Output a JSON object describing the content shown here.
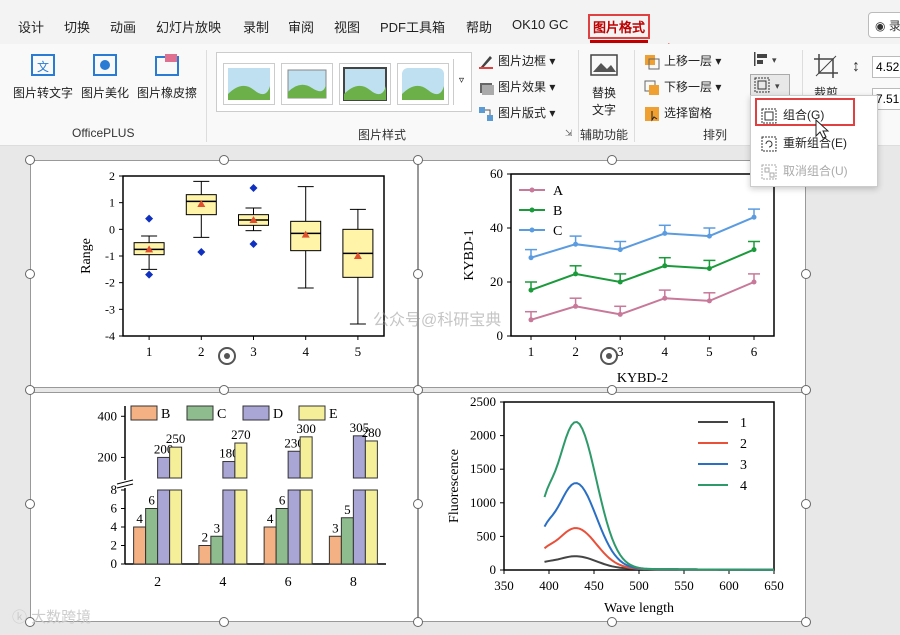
{
  "menubar": {
    "items": [
      "设计",
      "切换",
      "动画",
      "幻灯片放映",
      "录制",
      "审阅",
      "视图",
      "PDF工具箱",
      "帮助",
      "OK10 GC"
    ],
    "active": "图片格式",
    "record_label": "录"
  },
  "ribbon": {
    "officeplus": {
      "buttons": [
        "图片转文字",
        "图片美化",
        "图片橡皮擦"
      ],
      "label": "OfficePLUS"
    },
    "picture_styles": {
      "label": "图片样式",
      "items": [
        "图片边框",
        "图片效果",
        "图片版式"
      ]
    },
    "accessibility": {
      "button": "替换\n文字",
      "button_line1": "替换",
      "button_line2": "文字",
      "label": "辅助功能"
    },
    "arrange": {
      "label": "排列",
      "items": [
        "上移一层",
        "下移一层",
        "选择窗格"
      ]
    },
    "crop": {
      "label": "裁剪"
    },
    "size": {
      "height": "4.52",
      "width": "7.51"
    }
  },
  "dropdown": {
    "items": [
      {
        "label": "组合(G)",
        "enabled": true
      },
      {
        "label": "重新组合(E)",
        "enabled": true
      },
      {
        "label": "取消组合(U)",
        "enabled": false
      }
    ]
  },
  "watermarks": {
    "center": "公众号@科研宝典",
    "corner": "大数跨境"
  },
  "chart_data": [
    {
      "type": "box",
      "ylabel": "Range",
      "categories": [
        "1",
        "2",
        "3",
        "4",
        "5"
      ],
      "ylim": [
        -4,
        2
      ],
      "yticks": [
        "-4",
        "-3",
        "-2",
        "-1",
        "0",
        "1",
        "2"
      ],
      "boxes": [
        {
          "min": -1.5,
          "q1": -0.95,
          "median": -0.75,
          "q3": -0.5,
          "max": -0.25,
          "mean": -0.75,
          "outliers": [
            0.4,
            -1.7
          ]
        },
        {
          "min": -0.3,
          "q1": 0.55,
          "median": 1.05,
          "q3": 1.3,
          "max": 1.8,
          "mean": 0.95,
          "outliers": [
            -0.85
          ]
        },
        {
          "min": -0.05,
          "q1": 0.15,
          "median": 0.35,
          "q3": 0.55,
          "max": 0.8,
          "mean": 0.35,
          "outliers": [
            1.55,
            -0.55
          ]
        },
        {
          "min": -2.2,
          "q1": -0.8,
          "median": -0.15,
          "q3": 0.3,
          "max": 1.6,
          "mean": -0.2,
          "outliers": []
        },
        {
          "min": -3.55,
          "q1": -1.8,
          "median": -0.9,
          "q3": 0.0,
          "max": 0.75,
          "mean": -1.0,
          "outliers": []
        }
      ]
    },
    {
      "type": "line",
      "ylabel": "KYBD-1",
      "xlabel": "KYBD-2",
      "x": [
        1,
        2,
        3,
        4,
        5,
        6
      ],
      "ylim": [
        0,
        60
      ],
      "yticks": [
        "0",
        "20",
        "40",
        "60"
      ],
      "series": [
        {
          "name": "A",
          "values": [
            6,
            11,
            8,
            14,
            13,
            20
          ],
          "color": "#c87898"
        },
        {
          "name": "B",
          "values": [
            17,
            23,
            20,
            26,
            25,
            32
          ],
          "color": "#1a9a3a"
        },
        {
          "name": "C",
          "values": [
            29,
            34,
            32,
            38,
            37,
            44
          ],
          "color": "#5b9be0"
        }
      ]
    },
    {
      "type": "bar",
      "categories": [
        "2",
        "4",
        "6",
        "8"
      ],
      "yticks_low": [
        "0",
        "2",
        "4",
        "6",
        "8"
      ],
      "yticks_high": [
        "200",
        "400"
      ],
      "series": [
        {
          "name": "B",
          "values": [
            4,
            2,
            4,
            3
          ],
          "color": "#f4b183"
        },
        {
          "name": "C",
          "values": [
            6,
            3,
            6,
            5
          ],
          "color": "#8fbc8f"
        },
        {
          "name": "D",
          "values": [
            200,
            180,
            230,
            305
          ],
          "color": "#a9a6d6"
        },
        {
          "name": "E",
          "values": [
            250,
            270,
            300,
            280
          ],
          "color": "#f5ef9a"
        }
      ],
      "labels": [
        [
          "4",
          "6",
          "200",
          "250"
        ],
        [
          "2",
          "3",
          "180",
          "270"
        ],
        [
          "4",
          "6",
          "230",
          "300"
        ],
        [
          "3",
          "5",
          "305",
          "280"
        ]
      ]
    },
    {
      "type": "line",
      "ylabel": "Fluorescence",
      "xlabel": "Wave length",
      "xlim": [
        350,
        650
      ],
      "ylim": [
        0,
        2500
      ],
      "xticks": [
        "350",
        "400",
        "450",
        "500",
        "550",
        "600",
        "650"
      ],
      "yticks": [
        "0",
        "500",
        "1000",
        "1500",
        "2000",
        "2500"
      ],
      "series": [
        {
          "name": "1",
          "peak": 180,
          "color": "#444444"
        },
        {
          "name": "2",
          "peak": 600,
          "color": "#e8503a"
        },
        {
          "name": "3",
          "peak": 1270,
          "color": "#2a6fc4"
        },
        {
          "name": "4",
          "peak": 2180,
          "color": "#2e9a6a"
        }
      ]
    }
  ]
}
